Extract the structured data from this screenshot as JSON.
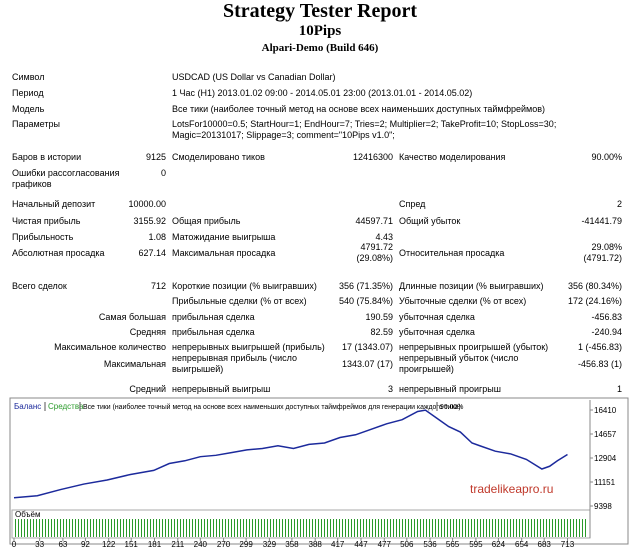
{
  "header": {
    "title": "Strategy Tester Report",
    "subtitle": "10Pips",
    "server": "Alpari-Demo (Build 646)"
  },
  "table": {
    "rows": [
      [
        "Символ",
        "USDCAD (US Dollar vs Canadian Dollar)"
      ],
      [
        "Период",
        "1 Час (H1) 2013.01.02 09:00 - 2014.05.01 23:00 (2013.01.01 - 2014.05.02)"
      ],
      [
        "Модель",
        "Все тики (наиболее точный метод на основе всех наименьших доступных таймфреймов)"
      ],
      [
        "Параметры",
        "LotsFor10000=0.5; StartHour=1; EndHour=7; Tries=2; Multiplier=2; TakeProfit=10; StopLoss=30; Magic=20131017; Slippage=3; comment=\"10Pips v1.0\";"
      ],
      [
        "Баров в истории",
        "9125",
        "Смоделировано тиков",
        "12416300",
        "Качество моделирования",
        "90.00%"
      ],
      [
        "Ошибки рассогласования графиков",
        "0"
      ],
      [
        "Начальный депозит",
        "10000.00",
        "Спред",
        "2"
      ],
      [
        "Чистая прибыль",
        "3155.92",
        "Общая прибыль",
        "44597.71",
        "Общий убыток",
        "-41441.79"
      ],
      [
        "Прибыльность",
        "1.08",
        "Матожидание выигрыша",
        "4.43"
      ],
      [
        "Абсолютная просадка",
        "627.14",
        "Максимальная просадка",
        "4791.72\n(29.08%)",
        "Относительная просадка",
        "29.08%\n(4791.72)"
      ],
      [
        "Всего сделок",
        "712",
        "Короткие позиции (% выигравших)",
        "356 (71.35%)",
        "Длинные позиции (% выигравших)",
        "356 (80.34%)"
      ],
      [
        "Прибыльные сделки (% от всех)",
        "540 (75.84%)",
        "Убыточные сделки (% от всех)",
        "172 (24.16%)"
      ],
      [
        "Самая большая",
        "прибыльная сделка",
        "190.59",
        "убыточная сделка",
        "-456.83"
      ],
      [
        "Средняя",
        "прибыльная сделка",
        "82.59",
        "убыточная сделка",
        "-240.94"
      ],
      [
        "Максимальное количество",
        "непрерывных выигрышей (прибыль)",
        "17 (1343.07)",
        "непрерывных проигрышей (убыток)",
        "1 (-456.83)"
      ],
      [
        "Максимальная",
        "непрерывная прибыль (число выигрышей)",
        "1343.07 (17)",
        "непрерывный убыток (число проигрышей)",
        "-456.83 (1)"
      ],
      [
        "Средний",
        "непрерывный выигрыш",
        "3",
        "непрерывный проигрыш",
        "1"
      ]
    ]
  },
  "chart_data": {
    "type": "line",
    "equity_label": "Средства",
    "model": "Все тики (наиболее точный метод на основе всех наименьших доступных таймфреймов для генерации каждого тика)",
    "quality": "90.00%",
    "volume_label": "Объём",
    "watermark": "tradelikeapro.ru",
    "x": [
      0,
      30,
      60,
      90,
      120,
      150,
      180,
      200,
      220,
      240,
      260,
      280,
      300,
      320,
      340,
      360,
      380,
      400,
      420,
      440,
      460,
      480,
      500,
      520,
      530,
      545,
      560,
      575,
      590,
      600,
      620,
      640,
      660,
      680,
      690,
      700,
      713
    ],
    "series": [
      {
        "name": "Баланс",
        "color": "#1c2a9c",
        "values": [
          10000,
          10150,
          10600,
          11000,
          11300,
          11700,
          12000,
          12500,
          12700,
          13000,
          13100,
          13300,
          13500,
          13600,
          13800,
          13600,
          13900,
          14000,
          14400,
          14600,
          15000,
          15400,
          15700,
          16300,
          16400,
          15800,
          15200,
          14800,
          14000,
          13800,
          13400,
          13200,
          12800,
          12100,
          12300,
          12700,
          13156
        ]
      }
    ],
    "xlim": [
      0,
      742
    ],
    "xticks": [
      0,
      33,
      63,
      92,
      122,
      151,
      181,
      211,
      240,
      270,
      299,
      329,
      358,
      388,
      417,
      447,
      477,
      506,
      536,
      565,
      595,
      624,
      654,
      683,
      713
    ],
    "ylim": [
      9398,
      16994
    ],
    "yticks": [
      16410,
      14657,
      12904,
      11151,
      9398
    ]
  }
}
